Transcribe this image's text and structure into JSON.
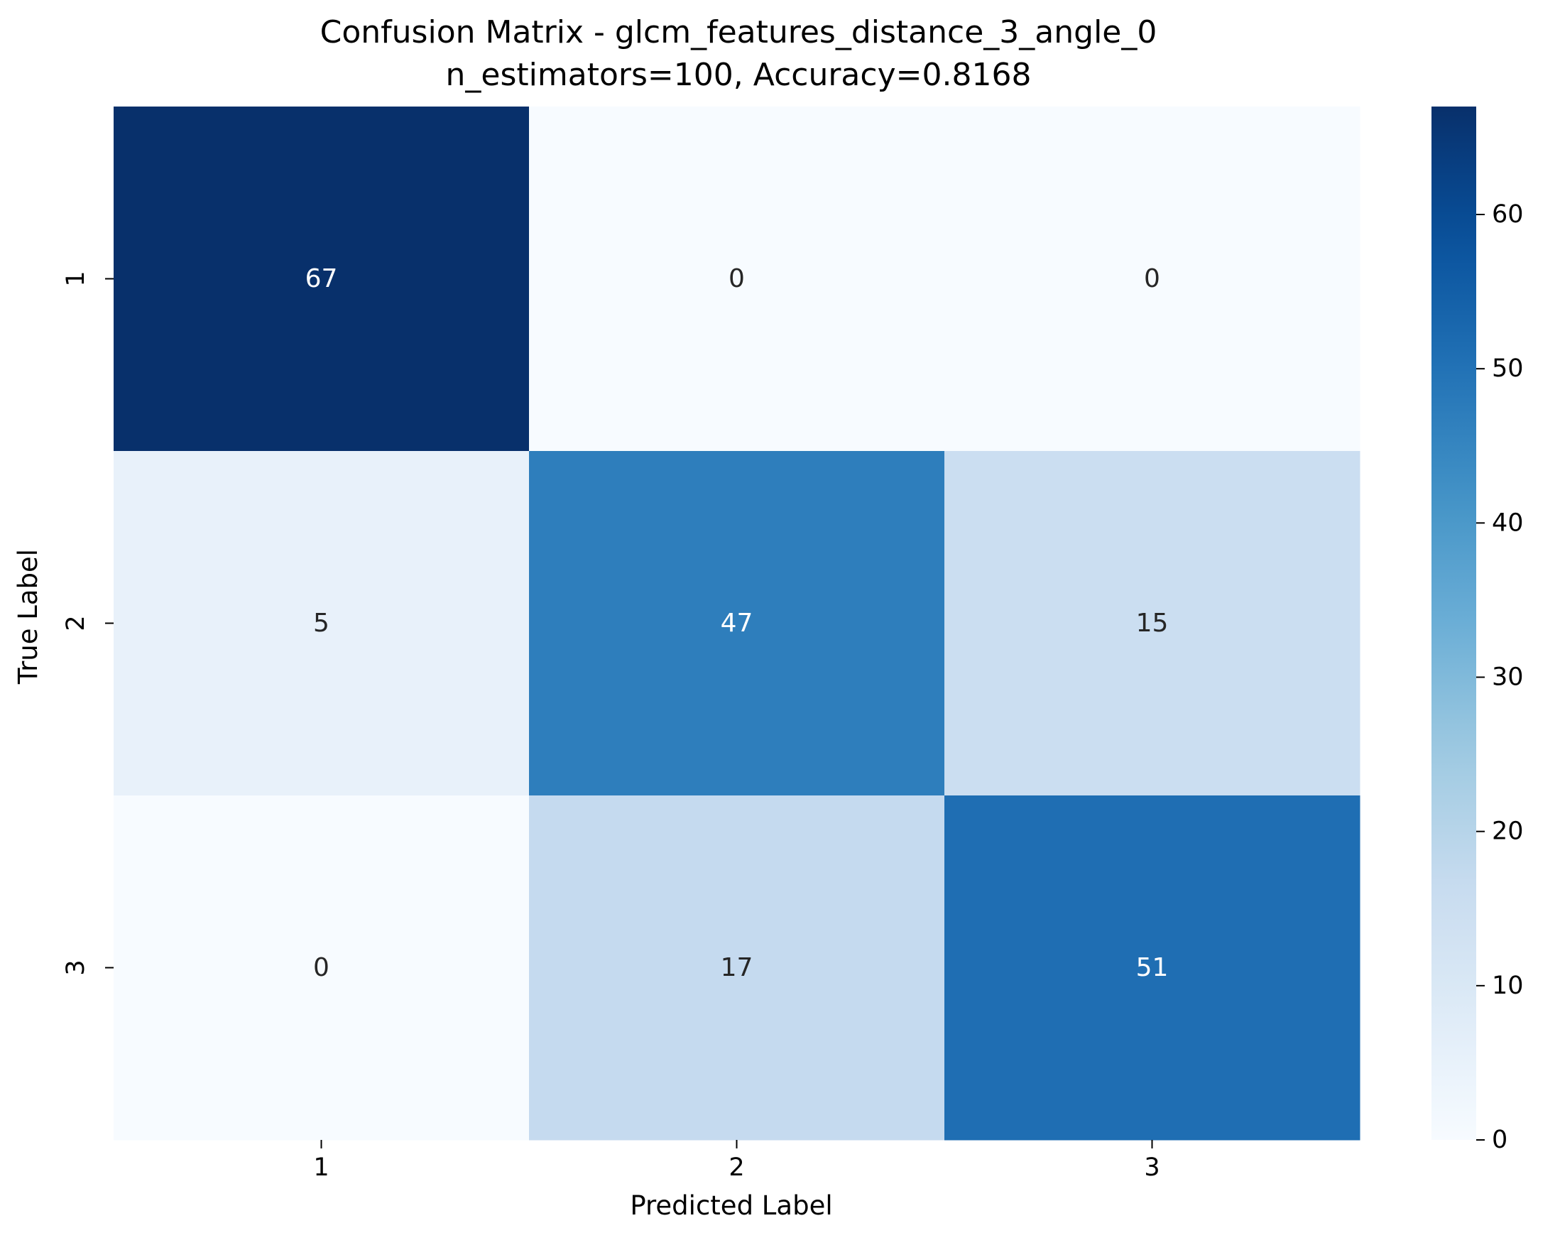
{
  "chart_data": {
    "type": "heatmap",
    "title": "Confusion Matrix - glcm_features_distance_3_angle_0",
    "subtitle": "n_estimators=100, Accuracy=0.8168",
    "xlabel": "Predicted Label",
    "ylabel": "True Label",
    "x_categories": [
      "1",
      "2",
      "3"
    ],
    "y_categories": [
      "1",
      "2",
      "3"
    ],
    "values": [
      [
        67,
        0,
        0
      ],
      [
        5,
        47,
        15
      ],
      [
        0,
        17,
        51
      ]
    ],
    "colormap": "Blues",
    "colorbar": {
      "min": 0,
      "max": 67,
      "ticks": [
        0,
        10,
        20,
        30,
        40,
        50,
        60
      ]
    },
    "colors": {
      "low": "#f7fbff",
      "high": "#08306b",
      "text_dark": "#262626",
      "text_light": "#ffffff"
    }
  }
}
